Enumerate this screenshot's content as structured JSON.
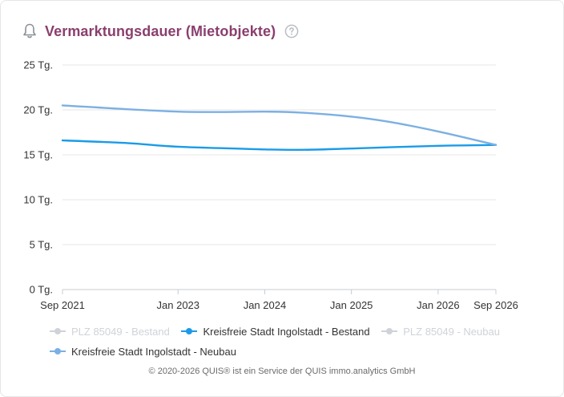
{
  "header": {
    "title": "Vermarktungsdauer (Mietobjekte)",
    "icon": "bell-icon",
    "help_icon": "help-icon",
    "title_color": "#8a3f6e"
  },
  "chart_data": {
    "type": "line",
    "ylim": [
      0,
      25
    ],
    "y_ticks": [
      "0 Tg.",
      "5 Tg.",
      "10 Tg.",
      "15 Tg.",
      "20 Tg.",
      "25 Tg."
    ],
    "x_ticks": [
      "Sep 2021",
      "Jan 2023",
      "Jan 2024",
      "Jan 2025",
      "Jan 2026",
      "Sep 2026"
    ],
    "x_range": [
      "2021-09",
      "2026-09"
    ],
    "grid": true,
    "legend_position": "bottom",
    "series": [
      {
        "name": "PLZ 85049 - Bestand",
        "visible": false,
        "color": "#cfd3d8",
        "points": []
      },
      {
        "name": "Kreisfreie Stadt Ingolstadt - Bestand",
        "visible": true,
        "color": "#1a9be8",
        "points": [
          {
            "x": "2021-09",
            "y": 16.6
          },
          {
            "x": "2022-06",
            "y": 16.3
          },
          {
            "x": "2023-01",
            "y": 15.9
          },
          {
            "x": "2024-01",
            "y": 15.6
          },
          {
            "x": "2024-06",
            "y": 15.55
          },
          {
            "x": "2025-01",
            "y": 15.7
          },
          {
            "x": "2026-01",
            "y": 16.0
          },
          {
            "x": "2026-09",
            "y": 16.1
          }
        ]
      },
      {
        "name": "PLZ 85049 - Neubau",
        "visible": false,
        "color": "#cfd3d8",
        "points": []
      },
      {
        "name": "Kreisfreie Stadt Ingolstadt - Neubau",
        "visible": true,
        "color": "#7cb0e2",
        "points": [
          {
            "x": "2021-09",
            "y": 20.5
          },
          {
            "x": "2023-01",
            "y": 19.8
          },
          {
            "x": "2024-01",
            "y": 19.8
          },
          {
            "x": "2024-06",
            "y": 19.7
          },
          {
            "x": "2025-01",
            "y": 19.25
          },
          {
            "x": "2025-06",
            "y": 18.7
          },
          {
            "x": "2026-01",
            "y": 17.6
          },
          {
            "x": "2026-09",
            "y": 16.1
          }
        ]
      }
    ]
  },
  "footer": {
    "copyright": "© 2020-2026 QUIS® ist ein Service der QUIS immo.analytics GmbH"
  }
}
